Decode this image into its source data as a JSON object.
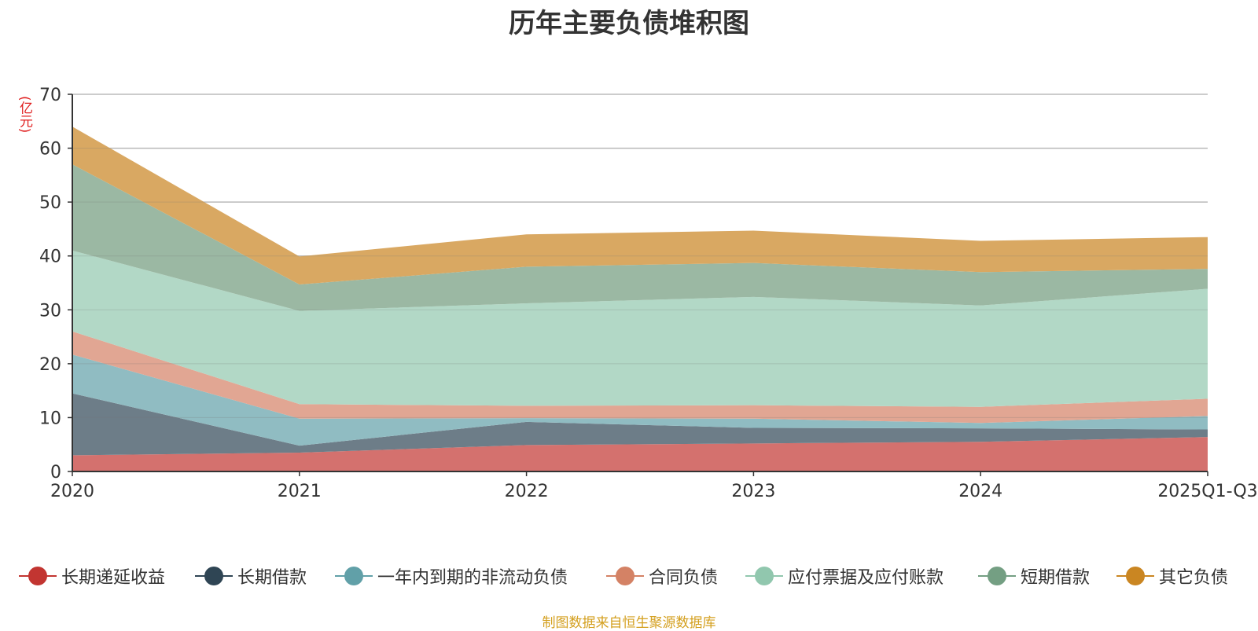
{
  "chart_data": {
    "type": "area",
    "stacked": true,
    "title": "历年主要负债堆积图",
    "unit": "(亿元)",
    "categories": [
      "2020",
      "2021",
      "2022",
      "2023",
      "2024",
      "2025Q1-Q3"
    ],
    "ylim": [
      0,
      70
    ],
    "yticks": [
      0,
      10,
      20,
      30,
      40,
      50,
      60,
      70
    ],
    "grid": true,
    "legend_position": "bottom",
    "series": [
      {
        "name": "长期递延收益",
        "color": "#c23531",
        "fill": "#d4716e",
        "values": [
          3.0,
          3.5,
          4.9,
          5.2,
          5.5,
          6.4
        ]
      },
      {
        "name": "长期借款",
        "color": "#2f4554",
        "fill": "#6d7d88",
        "values": [
          11.5,
          1.3,
          4.3,
          2.9,
          2.5,
          1.4
        ]
      },
      {
        "name": "一年内到期的非流动负债",
        "color": "#61a0a8",
        "fill": "#90bcc2",
        "values": [
          7.2,
          5.0,
          0.7,
          1.7,
          1.0,
          2.5
        ]
      },
      {
        "name": "合同负债",
        "color": "#d48265",
        "fill": "#e1a693",
        "values": [
          4.3,
          2.7,
          2.3,
          2.5,
          3.0,
          3.2
        ]
      },
      {
        "name": "应付票据及应付账款",
        "color": "#91c7ae",
        "fill": "#b2d8c6",
        "values": [
          15.0,
          17.3,
          19.0,
          20.1,
          18.8,
          20.4
        ]
      },
      {
        "name": "短期借款",
        "color": "#749f83",
        "fill": "#9bb8a3",
        "values": [
          16.0,
          4.9,
          6.8,
          6.3,
          6.2,
          3.7
        ]
      },
      {
        "name": "其它负债",
        "color": "#ca8622",
        "fill": "#d9a862",
        "values": [
          7.0,
          5.2,
          6.0,
          6.0,
          5.8,
          5.9
        ]
      }
    ]
  },
  "source_note": "制图数据来自恒生聚源数据库"
}
